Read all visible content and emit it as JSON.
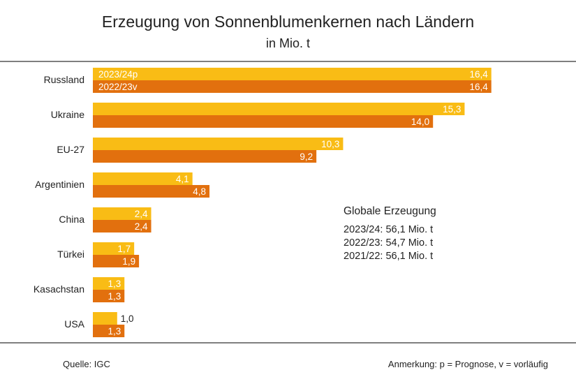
{
  "chart_data": {
    "type": "bar",
    "orientation": "horizontal",
    "title": "Erzeugung von Sonnenblumenkernen nach Ländern",
    "subtitle": "in Mio. t",
    "categories": [
      "Russland",
      "Ukraine",
      "EU-27",
      "Argentinien",
      "China",
      "Türkei",
      "Kasachstan",
      "USA"
    ],
    "series": [
      {
        "name": "2023/24p",
        "color": "#f9bc15",
        "values": [
          16.4,
          15.3,
          10.3,
          4.1,
          2.4,
          1.7,
          1.3,
          1.0
        ],
        "labels": [
          "16,4",
          "15,3",
          "10,3",
          "4,1",
          "2,4",
          "1,7",
          "1,3",
          "1,0"
        ]
      },
      {
        "name": "2022/23v",
        "color": "#e2700e",
        "values": [
          16.4,
          14.0,
          9.2,
          4.8,
          2.4,
          1.9,
          1.3,
          1.3
        ],
        "labels": [
          "16,4",
          "14,0",
          "9,2",
          "4,8",
          "2,4",
          "1,9",
          "1,3",
          "1,3"
        ]
      }
    ],
    "legend_placement": "inside-first-bars",
    "grid": false
  },
  "info": {
    "heading": "Globale Erzeugung",
    "lines": [
      "2023/24: 56,1 Mio. t",
      "2022/23: 54,7 Mio. t",
      "2021/22: 56,1 Mio. t"
    ]
  },
  "footer": {
    "source": "Quelle:  IGC",
    "note": "Anmerkung: p = Prognose, v = vorläufig"
  }
}
